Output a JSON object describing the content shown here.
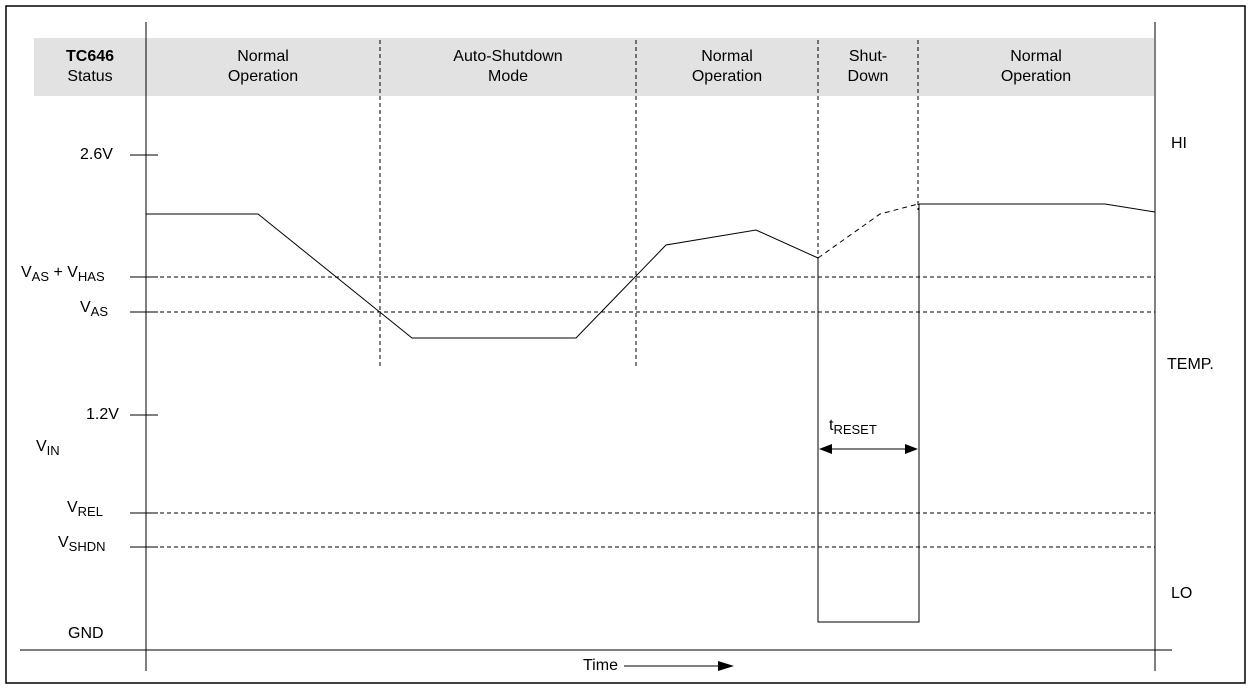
{
  "status_header": {
    "title_bold": "TC646",
    "title_sub": "Status",
    "phases": [
      {
        "line1": "Normal",
        "line2": "Operation"
      },
      {
        "line1": "Auto-Shutdown",
        "line2": "Mode"
      },
      {
        "line1": "Normal",
        "line2": "Operation"
      },
      {
        "line1": "Shut-",
        "line2": "Down"
      },
      {
        "line1": "Normal",
        "line2": "Operation"
      }
    ]
  },
  "y_axis": {
    "v2_6": "2.6V",
    "vas_hys_main1": "V",
    "vas_hys_sub1": "AS",
    "vas_hys_plus": " + V",
    "vas_hys_sub2": "HAS",
    "vas_main": "V",
    "vas_sub": "AS",
    "v1_2": "1.2V",
    "vin_main": "V",
    "vin_sub": "IN",
    "vrel_main": "V",
    "vrel_sub": "REL",
    "vshdn_main": "V",
    "vshdn_sub": "SHDN",
    "gnd": "GND"
  },
  "right_labels": {
    "hi": "HI",
    "temp": "TEMP.",
    "lo": "LO"
  },
  "treset": {
    "main": "t",
    "sub": "RESET"
  },
  "x_axis": {
    "label": "Time"
  }
}
